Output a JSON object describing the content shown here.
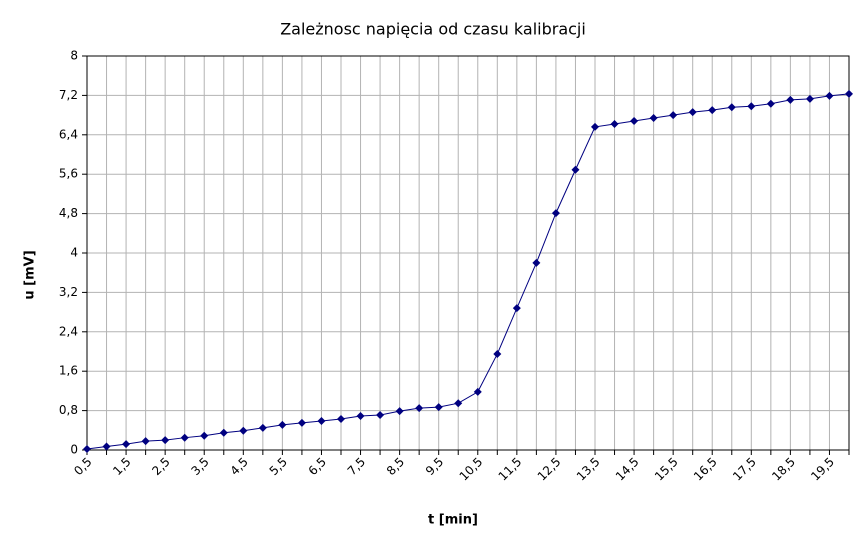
{
  "chart_data": {
    "type": "line",
    "title": "Zależnosc napięcia od czasu kalibracji",
    "x_label": "t [min]",
    "y_label": "u [mV]",
    "categories": [
      "0,5",
      null,
      "1,5",
      null,
      "2,5",
      null,
      "3,5",
      null,
      "4,5",
      null,
      "5,5",
      null,
      "6,5",
      null,
      "7,5",
      null,
      "8,5",
      null,
      "9,5",
      null,
      "10,5",
      null,
      "11,5",
      null,
      "12,5",
      null,
      "13,5",
      null,
      "14,5",
      null,
      "15,5",
      null,
      "16,5",
      null,
      "17,5",
      null,
      "18,5",
      null,
      "19,5",
      null
    ],
    "series": [
      {
        "color": "#000080",
        "values": [
          0.02,
          0.07,
          0.12,
          0.18,
          0.2,
          0.25,
          0.29,
          0.35,
          0.39,
          0.45,
          0.51,
          0.55,
          0.59,
          0.63,
          0.69,
          0.71,
          0.79,
          0.85,
          0.87,
          0.95,
          1.18,
          1.95,
          2.88,
          3.8,
          4.81,
          5.69,
          6.56,
          6.62,
          6.68,
          6.74,
          6.8,
          6.86,
          6.9,
          6.96,
          6.98,
          7.03,
          7.11,
          7.13,
          7.19,
          7.23
        ]
      }
    ],
    "ylim": [
      0,
      8
    ],
    "yticks": [
      0,
      {
        "value": 0.8,
        "label": "0,8"
      },
      {
        "value": 1.6,
        "label": "1,6"
      },
      {
        "value": 2.4,
        "label": "2,4"
      },
      {
        "value": 3.2,
        "label": "3,2"
      },
      4,
      {
        "value": 4.8,
        "label": "4,8"
      },
      {
        "value": 5.6,
        "label": "5,6"
      },
      {
        "value": 6.4,
        "label": "6,4"
      },
      {
        "value": 7.2,
        "label": "7,2"
      },
      8
    ],
    "grid": true
  }
}
